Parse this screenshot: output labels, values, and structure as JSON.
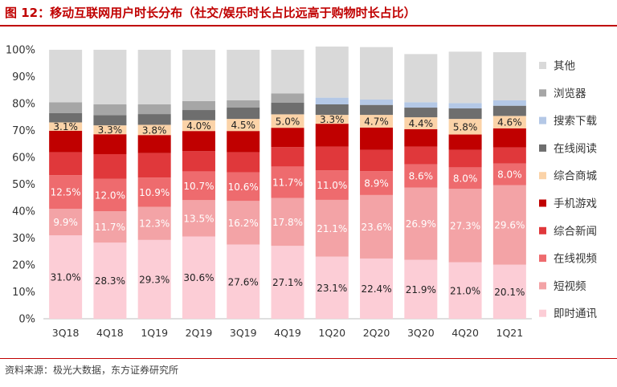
{
  "title": "图 12：移动互联网用户时长分布（社交/娱乐时长占比远高于购物时长占比）",
  "source": "资料来源：极光大数据，东方证券研究所",
  "chart_data": {
    "type": "bar",
    "stacked": true,
    "percent": true,
    "categories": [
      "3Q18",
      "4Q18",
      "1Q19",
      "2Q19",
      "3Q19",
      "4Q19",
      "1Q20",
      "2Q20",
      "3Q20",
      "4Q20",
      "1Q21"
    ],
    "ylim": [
      0,
      100
    ],
    "yticks": [
      "0%",
      "10%",
      "20%",
      "30%",
      "40%",
      "50%",
      "60%",
      "70%",
      "80%",
      "90%",
      "100%"
    ],
    "legend_position": "right",
    "series": [
      {
        "name": "即时通讯",
        "color": "#fccdd6",
        "values": [
          31.0,
          28.3,
          29.3,
          30.6,
          27.6,
          27.1,
          23.1,
          22.4,
          21.9,
          21.0,
          20.1
        ],
        "labels": [
          "31.0%",
          "28.3%",
          "29.3%",
          "30.6%",
          "27.6%",
          "27.1%",
          "23.1%",
          "22.4%",
          "21.9%",
          "21.0%",
          "20.1%"
        ],
        "label_color": "#222222"
      },
      {
        "name": "短视频",
        "color": "#f3a3a6",
        "values": [
          9.9,
          11.7,
          12.3,
          13.5,
          16.2,
          17.8,
          21.1,
          23.6,
          26.9,
          27.3,
          29.6
        ],
        "labels": [
          "9.9%",
          "11.7%",
          "12.3%",
          "13.5%",
          "16.2%",
          "17.8%",
          "21.1%",
          "23.6%",
          "26.9%",
          "27.3%",
          "29.6%"
        ],
        "label_color": "#ffffff"
      },
      {
        "name": "在线视频",
        "color": "#ee6b6e",
        "values": [
          12.5,
          12.0,
          10.9,
          10.7,
          10.6,
          11.7,
          11.0,
          8.9,
          8.6,
          8.0,
          8.0
        ],
        "labels": [
          "12.5%",
          "12.0%",
          "10.9%",
          "10.7%",
          "10.6%",
          "11.7%",
          "11.0%",
          "8.9%",
          "8.6%",
          "8.0%",
          "8.0%"
        ],
        "label_color": "#ffffff"
      },
      {
        "name": "综合新闻",
        "color": "#e0383b",
        "values": [
          8.5,
          9.2,
          9.1,
          7.5,
          7.5,
          7.2,
          8.8,
          7.9,
          6.6,
          6.5,
          6.0
        ],
        "labels": null
      },
      {
        "name": "手机游戏",
        "color": "#c00000",
        "values": [
          8.0,
          7.4,
          6.7,
          7.5,
          7.9,
          7.2,
          8.5,
          8.3,
          6.5,
          5.7,
          7.1
        ],
        "labels": null
      },
      {
        "name": "综合商城",
        "color": "#fbd3a8",
        "values": [
          3.1,
          3.3,
          3.8,
          4.0,
          4.5,
          5.0,
          3.3,
          4.7,
          4.4,
          5.8,
          4.6
        ],
        "labels": [
          "3.1%",
          "3.3%",
          "3.8%",
          "4.0%",
          "4.5%",
          "5.0%",
          "3.3%",
          "4.7%",
          "4.4%",
          "5.8%",
          "4.6%"
        ],
        "label_color": "#222222"
      },
      {
        "name": "在线阅读",
        "color": "#6e6e6e",
        "values": [
          3.5,
          3.8,
          4.0,
          3.8,
          4.2,
          4.3,
          3.9,
          3.7,
          3.6,
          3.9,
          3.8
        ],
        "labels": null
      },
      {
        "name": "搜索下载",
        "color": "#b4c8e6",
        "values": [
          0,
          0,
          0,
          0,
          0,
          0,
          2.5,
          2.0,
          2.0,
          2.0,
          2.0
        ],
        "labels": null
      },
      {
        "name": "浏览器",
        "color": "#a6a6a6",
        "values": [
          4.0,
          4.0,
          3.6,
          3.3,
          2.7,
          3.5,
          0,
          0,
          0,
          0,
          0
        ],
        "labels": null
      },
      {
        "name": "其他",
        "color": "#d9d9d9",
        "values": [
          19.5,
          20.3,
          20.3,
          19.1,
          18.8,
          16.2,
          19.0,
          19.5,
          17.9,
          19.1,
          17.9
        ],
        "labels": null
      }
    ]
  }
}
